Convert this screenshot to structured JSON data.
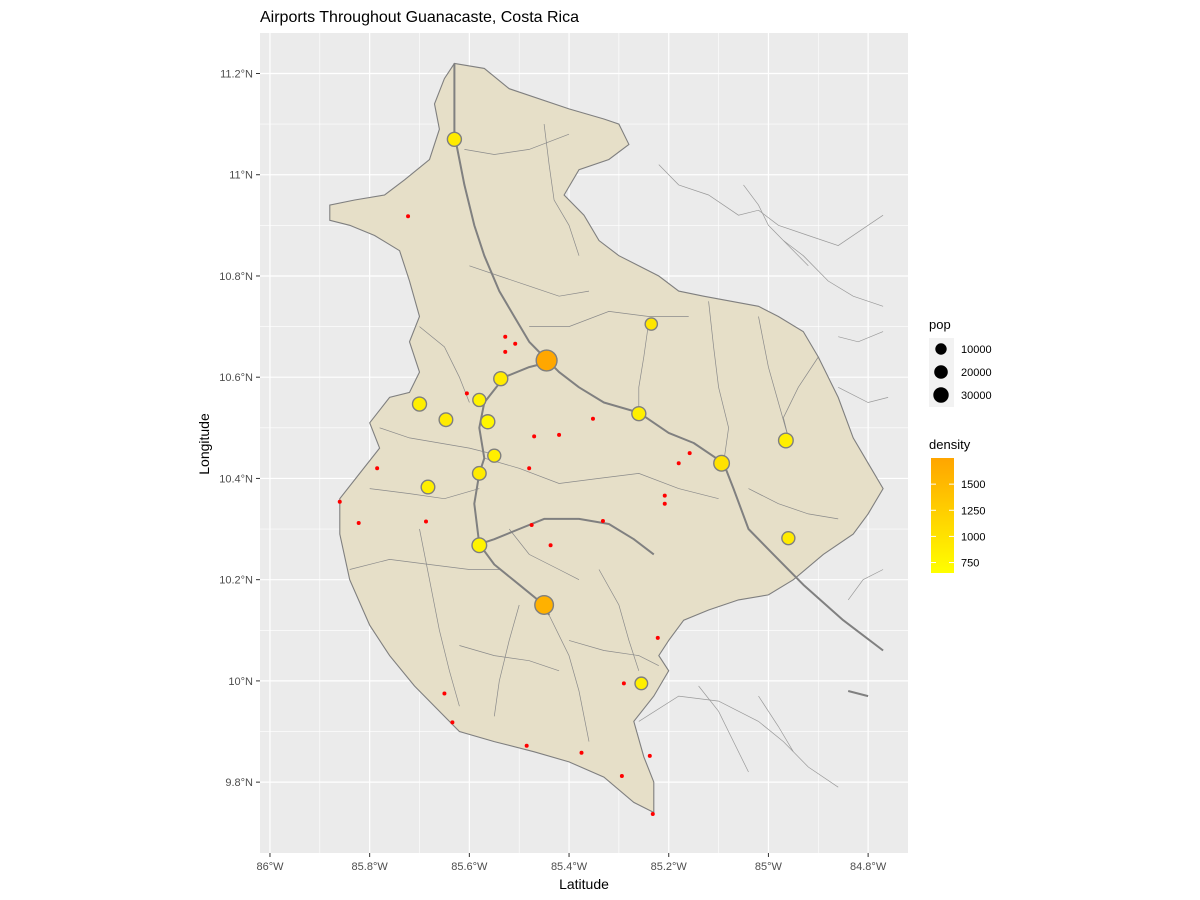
{
  "chart_data": {
    "type": "map",
    "title": "Airports Throughout Guanacaste, Costa Rica",
    "xlabel": "Latitude",
    "ylabel": "Longitude",
    "xlim": [
      -86.02,
      -84.72
    ],
    "ylim": [
      9.66,
      11.28
    ],
    "x_ticks": [
      {
        "value": -86.0,
        "label": "86°W"
      },
      {
        "value": -85.8,
        "label": "85.8°W"
      },
      {
        "value": -85.6,
        "label": "85.6°W"
      },
      {
        "value": -85.4,
        "label": "85.4°W"
      },
      {
        "value": -85.2,
        "label": "85.2°W"
      },
      {
        "value": -85.0,
        "label": "85°W"
      },
      {
        "value": -84.8,
        "label": "84.8°W"
      }
    ],
    "y_ticks": [
      {
        "value": 9.8,
        "label": "9.8°N"
      },
      {
        "value": 10.0,
        "label": "10°N"
      },
      {
        "value": 10.2,
        "label": "10.2°N"
      },
      {
        "value": 10.4,
        "label": "10.4°N"
      },
      {
        "value": 10.6,
        "label": "10.6°N"
      },
      {
        "value": 10.8,
        "label": "10.8°N"
      },
      {
        "value": 11.0,
        "label": "11°N"
      },
      {
        "value": 11.2,
        "label": "11.2°N"
      }
    ],
    "grid": true,
    "legend_position": "right",
    "colors": {
      "panel": "#ebebeb",
      "grid": "#ffffff",
      "province_fill": "#e6dfc8",
      "province_border": "#7f7f7f",
      "road": "#808080",
      "airport": "#ff0000",
      "density_low": "#ffff00",
      "density_high": "#ffa500"
    },
    "province_outline": [
      [
        -85.63,
        11.22
      ],
      [
        -85.57,
        11.21
      ],
      [
        -85.52,
        11.17
      ],
      [
        -85.4,
        11.13
      ],
      [
        -85.33,
        11.11
      ],
      [
        -85.3,
        11.1
      ],
      [
        -85.28,
        11.06
      ],
      [
        -85.32,
        11.03
      ],
      [
        -85.38,
        11.01
      ],
      [
        -85.41,
        10.96
      ],
      [
        -85.37,
        10.92
      ],
      [
        -85.34,
        10.87
      ],
      [
        -85.3,
        10.84
      ],
      [
        -85.22,
        10.8
      ],
      [
        -85.18,
        10.77
      ],
      [
        -85.13,
        10.76
      ],
      [
        -85.02,
        10.74
      ],
      [
        -84.98,
        10.72
      ],
      [
        -84.93,
        10.69
      ],
      [
        -84.9,
        10.64
      ],
      [
        -84.86,
        10.56
      ],
      [
        -84.83,
        10.48
      ],
      [
        -84.8,
        10.43
      ],
      [
        -84.77,
        10.38
      ],
      [
        -84.8,
        10.33
      ],
      [
        -84.83,
        10.29
      ],
      [
        -84.89,
        10.25
      ],
      [
        -84.95,
        10.2
      ],
      [
        -85.0,
        10.17
      ],
      [
        -85.06,
        10.16
      ],
      [
        -85.12,
        10.14
      ],
      [
        -85.17,
        10.12
      ],
      [
        -85.2,
        10.08
      ],
      [
        -85.22,
        10.05
      ],
      [
        -85.2,
        10.02
      ],
      [
        -85.23,
        9.97
      ],
      [
        -85.27,
        9.92
      ],
      [
        -85.25,
        9.85
      ],
      [
        -85.23,
        9.8
      ],
      [
        -85.23,
        9.74
      ],
      [
        -85.27,
        9.76
      ],
      [
        -85.33,
        9.81
      ],
      [
        -85.4,
        9.84
      ],
      [
        -85.47,
        9.86
      ],
      [
        -85.55,
        9.88
      ],
      [
        -85.62,
        9.9
      ],
      [
        -85.66,
        9.94
      ],
      [
        -85.71,
        9.99
      ],
      [
        -85.76,
        10.05
      ],
      [
        -85.8,
        10.11
      ],
      [
        -85.84,
        10.2
      ],
      [
        -85.86,
        10.29
      ],
      [
        -85.86,
        10.36
      ],
      [
        -85.82,
        10.41
      ],
      [
        -85.78,
        10.46
      ],
      [
        -85.8,
        10.51
      ],
      [
        -85.76,
        10.56
      ],
      [
        -85.72,
        10.57
      ],
      [
        -85.7,
        10.61
      ],
      [
        -85.72,
        10.67
      ],
      [
        -85.7,
        10.72
      ],
      [
        -85.72,
        10.79
      ],
      [
        -85.74,
        10.85
      ],
      [
        -85.79,
        10.88
      ],
      [
        -85.84,
        10.9
      ],
      [
        -85.88,
        10.91
      ],
      [
        -85.88,
        10.94
      ],
      [
        -85.83,
        10.95
      ],
      [
        -85.77,
        10.96
      ],
      [
        -85.73,
        10.99
      ],
      [
        -85.68,
        11.03
      ],
      [
        -85.66,
        11.09
      ],
      [
        -85.67,
        11.14
      ],
      [
        -85.65,
        11.19
      ],
      [
        -85.63,
        11.22
      ]
    ],
    "roads": [
      [
        [
          -85.63,
          11.22
        ],
        [
          -85.63,
          11.15
        ],
        [
          -85.63,
          11.08
        ],
        [
          -85.62,
          11.03
        ],
        [
          -85.61,
          10.98
        ],
        [
          -85.59,
          10.9
        ],
        [
          -85.57,
          10.84
        ],
        [
          -85.54,
          10.77
        ],
        [
          -85.51,
          10.72
        ],
        [
          -85.48,
          10.67
        ],
        [
          -85.45,
          10.64
        ],
        [
          -85.42,
          10.61
        ],
        [
          -85.38,
          10.58
        ],
        [
          -85.33,
          10.55
        ],
        [
          -85.26,
          10.53
        ],
        [
          -85.2,
          10.49
        ],
        [
          -85.15,
          10.47
        ],
        [
          -85.09,
          10.43
        ]
      ],
      [
        [
          -85.44,
          10.63
        ],
        [
          -85.48,
          10.62
        ],
        [
          -85.53,
          10.6
        ],
        [
          -85.57,
          10.55
        ],
        [
          -85.58,
          10.5
        ],
        [
          -85.57,
          10.44
        ],
        [
          -85.58,
          10.41
        ],
        [
          -85.59,
          10.35
        ],
        [
          -85.58,
          10.27
        ]
      ],
      [
        [
          -85.58,
          10.27
        ],
        [
          -85.55,
          10.23
        ],
        [
          -85.5,
          10.19
        ],
        [
          -85.45,
          10.15
        ],
        [
          -85.44,
          10.13
        ]
      ],
      [
        [
          -85.58,
          10.27
        ],
        [
          -85.55,
          10.28
        ],
        [
          -85.5,
          10.3
        ],
        [
          -85.45,
          10.32
        ],
        [
          -85.38,
          10.32
        ],
        [
          -85.32,
          10.31
        ],
        [
          -85.27,
          10.28
        ],
        [
          -85.23,
          10.25
        ]
      ],
      [
        [
          -85.09,
          10.43
        ],
        [
          -85.07,
          10.38
        ],
        [
          -85.04,
          10.3
        ],
        [
          -84.99,
          10.25
        ],
        [
          -84.93,
          10.19
        ],
        [
          -84.85,
          10.12
        ],
        [
          -84.77,
          10.06
        ]
      ],
      [
        [
          -84.84,
          9.98
        ],
        [
          -84.8,
          9.97
        ]
      ]
    ],
    "densities": [
      {
        "lon": -85.445,
        "lat": 10.633,
        "pop": 35000,
        "density": 1720
      },
      {
        "lon": -85.45,
        "lat": 10.15,
        "pop": 25000,
        "density": 1600
      },
      {
        "lon": -85.63,
        "lat": 11.07,
        "pop": 10000,
        "density": 900
      },
      {
        "lon": -85.537,
        "lat": 10.597,
        "pop": 10000,
        "density": 900
      },
      {
        "lon": -85.58,
        "lat": 10.555,
        "pop": 8000,
        "density": 800
      },
      {
        "lon": -85.7,
        "lat": 10.547,
        "pop": 10000,
        "density": 850
      },
      {
        "lon": -85.647,
        "lat": 10.516,
        "pop": 9000,
        "density": 900
      },
      {
        "lon": -85.563,
        "lat": 10.512,
        "pop": 10000,
        "density": 750
      },
      {
        "lon": -85.55,
        "lat": 10.445,
        "pop": 8000,
        "density": 850
      },
      {
        "lon": -85.58,
        "lat": 10.41,
        "pop": 9000,
        "density": 900
      },
      {
        "lon": -85.683,
        "lat": 10.383,
        "pop": 9000,
        "density": 850
      },
      {
        "lon": -85.58,
        "lat": 10.268,
        "pop": 12000,
        "density": 800
      },
      {
        "lon": -85.26,
        "lat": 10.528,
        "pop": 10000,
        "density": 850
      },
      {
        "lon": -85.235,
        "lat": 10.705,
        "pop": 6000,
        "density": 950
      },
      {
        "lon": -85.094,
        "lat": 10.43,
        "pop": 15000,
        "density": 1000
      },
      {
        "lon": -84.965,
        "lat": 10.475,
        "pop": 12000,
        "density": 850
      },
      {
        "lon": -84.96,
        "lat": 10.282,
        "pop": 8000,
        "density": 900
      },
      {
        "lon": -85.255,
        "lat": 9.995,
        "pop": 7000,
        "density": 850
      }
    ],
    "airports": [
      {
        "lon": -85.723,
        "lat": 10.918
      },
      {
        "lon": -85.528,
        "lat": 10.68
      },
      {
        "lon": -85.508,
        "lat": 10.666
      },
      {
        "lon": -85.528,
        "lat": 10.65
      },
      {
        "lon": -85.605,
        "lat": 10.568
      },
      {
        "lon": -85.352,
        "lat": 10.518
      },
      {
        "lon": -85.47,
        "lat": 10.483
      },
      {
        "lon": -85.42,
        "lat": 10.486
      },
      {
        "lon": -85.18,
        "lat": 10.43
      },
      {
        "lon": -85.158,
        "lat": 10.45
      },
      {
        "lon": -85.48,
        "lat": 10.42
      },
      {
        "lon": -85.785,
        "lat": 10.42
      },
      {
        "lon": -85.208,
        "lat": 10.366
      },
      {
        "lon": -85.208,
        "lat": 10.35
      },
      {
        "lon": -85.86,
        "lat": 10.354
      },
      {
        "lon": -85.822,
        "lat": 10.312
      },
      {
        "lon": -85.687,
        "lat": 10.315
      },
      {
        "lon": -85.475,
        "lat": 10.308
      },
      {
        "lon": -85.332,
        "lat": 10.316
      },
      {
        "lon": -85.437,
        "lat": 10.268
      },
      {
        "lon": -85.222,
        "lat": 10.085
      },
      {
        "lon": -85.29,
        "lat": 9.995
      },
      {
        "lon": -85.65,
        "lat": 9.975
      },
      {
        "lon": -85.634,
        "lat": 9.918
      },
      {
        "lon": -85.485,
        "lat": 9.872
      },
      {
        "lon": -85.375,
        "lat": 9.858
      },
      {
        "lon": -85.238,
        "lat": 9.852
      },
      {
        "lon": -85.294,
        "lat": 9.812
      },
      {
        "lon": -85.232,
        "lat": 9.737
      }
    ],
    "legend_pop": {
      "title": "pop",
      "items": [
        {
          "value": 10000,
          "label": "10000"
        },
        {
          "value": 20000,
          "label": "20000"
        },
        {
          "value": 30000,
          "label": "30000"
        }
      ]
    },
    "legend_density": {
      "title": "density",
      "range": [
        650,
        1750
      ],
      "ticks": [
        {
          "value": 750,
          "label": "750"
        },
        {
          "value": 1000,
          "label": "1000"
        },
        {
          "value": 1250,
          "label": "1250"
        },
        {
          "value": 1500,
          "label": "1500"
        }
      ]
    }
  }
}
